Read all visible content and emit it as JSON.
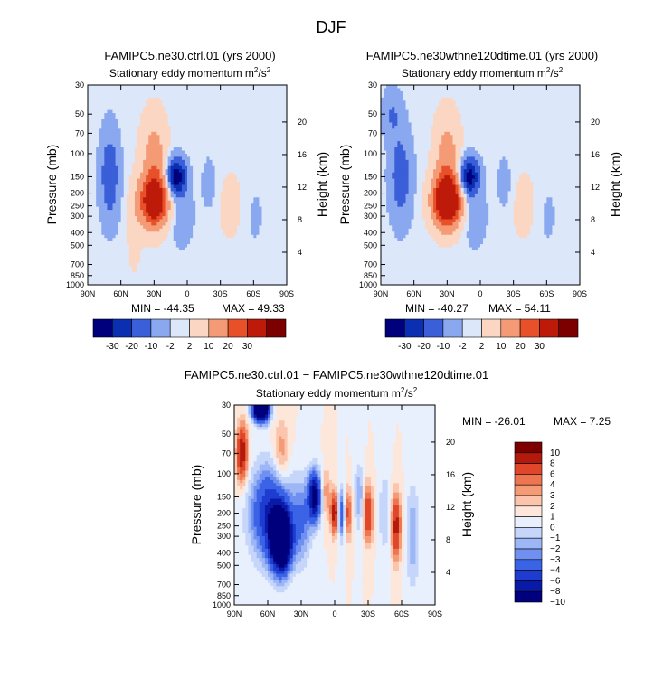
{
  "figure_title": "DJF",
  "chart_data": [
    {
      "type": "heatmap",
      "id": "p1",
      "case_title": "FAMIPC5.ne30.ctrl.01 (yrs 2000)",
      "subtitle": "Stationary eddy momentum",
      "units_base": "m",
      "units_exp1": "2",
      "units_mid": "/s",
      "units_exp2": "2",
      "ylabel": "Pressure (mb)",
      "ylabel_right": "Height (km)",
      "x_ticks": [
        "90N",
        "60N",
        "30N",
        "0",
        "30S",
        "60S",
        "90S"
      ],
      "x_lat": [
        90,
        60,
        30,
        0,
        -30,
        -60,
        -90
      ],
      "y_ticks": [
        "30",
        "50",
        "70",
        "100",
        "150",
        "200",
        "250",
        "300",
        "400",
        "500",
        "700",
        "850",
        "1000"
      ],
      "y_pressure": [
        30,
        50,
        70,
        100,
        150,
        200,
        250,
        300,
        400,
        500,
        700,
        850,
        1000
      ],
      "height_ticks": [
        "20",
        "16",
        "12",
        "8",
        "4"
      ],
      "height_km": [
        20,
        16,
        12,
        8,
        4
      ],
      "min_label": "MIN = -44.35",
      "max_label": "MAX =  49.33",
      "levels": [
        -30,
        -20,
        -10,
        -2,
        2,
        10,
        20,
        30
      ],
      "colorbar_labels": [
        "-30",
        "-20",
        "-10",
        "-2",
        "2",
        "10",
        "20",
        "30"
      ],
      "features": [
        {
          "lat": 70,
          "p": 150,
          "value": -18,
          "sigma_lat": 6,
          "sigma_logp": 0.55
        },
        {
          "lat": 30,
          "p": 230,
          "value": 45,
          "sigma_lat": 9,
          "sigma_logp": 0.32
        },
        {
          "lat": 30,
          "p": 100,
          "value": 14,
          "sigma_lat": 8,
          "sigma_logp": 0.5
        },
        {
          "lat": 10,
          "p": 150,
          "value": -38,
          "sigma_lat": 6,
          "sigma_logp": 0.22
        },
        {
          "lat": 5,
          "p": 300,
          "value": -6,
          "sigma_lat": 8,
          "sigma_logp": 0.4
        },
        {
          "lat": -20,
          "p": 170,
          "value": -5,
          "sigma_lat": 5,
          "sigma_logp": 0.35
        },
        {
          "lat": -40,
          "p": 250,
          "value": 4,
          "sigma_lat": 10,
          "sigma_logp": 0.5
        },
        {
          "lat": -60,
          "p": 300,
          "value": -3,
          "sigma_lat": 8,
          "sigma_logp": 0.5
        },
        {
          "lat": 48,
          "p": 400,
          "value": 4,
          "sigma_lat": 5,
          "sigma_logp": 0.6
        }
      ]
    },
    {
      "type": "heatmap",
      "id": "p2",
      "case_title": "FAMIPC5.ne30wthne120dtime.01 (yrs 2000)",
      "subtitle": "Stationary eddy momentum",
      "units_base": "m",
      "units_exp1": "2",
      "units_mid": "/s",
      "units_exp2": "2",
      "ylabel": "Pressure (mb)",
      "ylabel_right": "Height (km)",
      "x_ticks": [
        "90N",
        "60N",
        "30N",
        "0",
        "30S",
        "60S",
        "90S"
      ],
      "x_lat": [
        90,
        60,
        30,
        0,
        -30,
        -60,
        -90
      ],
      "y_ticks": [
        "30",
        "50",
        "70",
        "100",
        "150",
        "200",
        "250",
        "300",
        "400",
        "500",
        "700",
        "850",
        "1000"
      ],
      "y_pressure": [
        30,
        50,
        70,
        100,
        150,
        200,
        250,
        300,
        400,
        500,
        700,
        850,
        1000
      ],
      "height_ticks": [
        "20",
        "16",
        "12",
        "8",
        "4"
      ],
      "height_km": [
        20,
        16,
        12,
        8,
        4
      ],
      "min_label": "MIN = -40.27",
      "max_label": "MAX =  54.11",
      "levels": [
        -30,
        -20,
        -10,
        -2,
        2,
        10,
        20,
        30
      ],
      "colorbar_labels": [
        "-30",
        "-20",
        "-10",
        "-2",
        "2",
        "10",
        "20",
        "30"
      ],
      "features": [
        {
          "lat": 72,
          "p": 150,
          "value": -16,
          "sigma_lat": 7,
          "sigma_logp": 0.55
        },
        {
          "lat": 80,
          "p": 50,
          "value": -10,
          "sigma_lat": 6,
          "sigma_logp": 0.3
        },
        {
          "lat": 30,
          "p": 230,
          "value": 52,
          "sigma_lat": 9,
          "sigma_logp": 0.32
        },
        {
          "lat": 30,
          "p": 100,
          "value": 14,
          "sigma_lat": 8,
          "sigma_logp": 0.5
        },
        {
          "lat": 10,
          "p": 150,
          "value": -36,
          "sigma_lat": 6,
          "sigma_logp": 0.22
        },
        {
          "lat": 5,
          "p": 300,
          "value": -6,
          "sigma_lat": 8,
          "sigma_logp": 0.4
        },
        {
          "lat": -22,
          "p": 170,
          "value": -5,
          "sigma_lat": 5,
          "sigma_logp": 0.35
        },
        {
          "lat": -40,
          "p": 250,
          "value": 4,
          "sigma_lat": 10,
          "sigma_logp": 0.5
        },
        {
          "lat": -60,
          "p": 300,
          "value": -3,
          "sigma_lat": 8,
          "sigma_logp": 0.5
        }
      ]
    },
    {
      "type": "heatmap",
      "id": "p3",
      "case_title": "FAMIPC5.ne30.ctrl.01 − FAMIPC5.ne30wthne120dtime.01",
      "subtitle": "Stationary eddy momentum",
      "units_base": "m",
      "units_exp1": "2",
      "units_mid": "/s",
      "units_exp2": "2",
      "ylabel": "Pressure (mb)",
      "ylabel_right": "Height (km)",
      "x_ticks": [
        "90N",
        "60N",
        "30N",
        "0",
        "30S",
        "60S",
        "90S"
      ],
      "x_lat": [
        90,
        60,
        30,
        0,
        -30,
        -60,
        -90
      ],
      "y_ticks": [
        "30",
        "50",
        "70",
        "100",
        "150",
        "200",
        "250",
        "300",
        "400",
        "500",
        "700",
        "850",
        "1000"
      ],
      "y_pressure": [
        30,
        50,
        70,
        100,
        150,
        200,
        250,
        300,
        400,
        500,
        700,
        850,
        1000
      ],
      "height_ticks": [
        "20",
        "16",
        "12",
        "8",
        "4"
      ],
      "height_km": [
        20,
        16,
        12,
        8,
        4
      ],
      "min_label": "MIN = -26.01",
      "max_label": "MAX =   7.25",
      "levels": [
        -10,
        -8,
        -6,
        -4,
        -3,
        -2,
        -1,
        0,
        1,
        2,
        3,
        4,
        6,
        8,
        10
      ],
      "colorbar_labels": [
        "10",
        "8",
        "6",
        "4",
        "3",
        "2",
        "1",
        "0",
        "−1",
        "−2",
        "−3",
        "−4",
        "−6",
        "−8",
        "−10"
      ],
      "features": [
        {
          "lat": 83,
          "p": 70,
          "value": 8,
          "sigma_lat": 3.5,
          "sigma_logp": 0.35
        },
        {
          "lat": 66,
          "p": 32,
          "value": -20,
          "sigma_lat": 5,
          "sigma_logp": 0.15
        },
        {
          "lat": 58,
          "p": 200,
          "value": -8,
          "sigma_lat": 12,
          "sigma_logp": 0.55
        },
        {
          "lat": 48,
          "p": 320,
          "value": -22,
          "sigma_lat": 6,
          "sigma_logp": 0.35
        },
        {
          "lat": 48,
          "p": 70,
          "value": 3,
          "sigma_lat": 5,
          "sigma_logp": 0.4
        },
        {
          "lat": 30,
          "p": 230,
          "value": -4,
          "sigma_lat": 6,
          "sigma_logp": 0.5
        },
        {
          "lat": 18,
          "p": 150,
          "value": -12,
          "sigma_lat": 4,
          "sigma_logp": 0.3
        },
        {
          "lat": 8,
          "p": 140,
          "value": 3,
          "sigma_lat": 3,
          "sigma_logp": 0.3
        },
        {
          "lat": 0,
          "p": 200,
          "value": 8,
          "sigma_lat": 2.5,
          "sigma_logp": 0.25
        },
        {
          "lat": -6,
          "p": 200,
          "value": -6,
          "sigma_lat": 2.5,
          "sigma_logp": 0.3
        },
        {
          "lat": -12,
          "p": 200,
          "value": 5,
          "sigma_lat": 2.5,
          "sigma_logp": 0.3
        },
        {
          "lat": -22,
          "p": 150,
          "value": -3,
          "sigma_lat": 3,
          "sigma_logp": 0.4
        },
        {
          "lat": -30,
          "p": 200,
          "value": 6,
          "sigma_lat": 3,
          "sigma_logp": 0.35
        },
        {
          "lat": -45,
          "p": 200,
          "value": -2,
          "sigma_lat": 4,
          "sigma_logp": 0.5
        },
        {
          "lat": -55,
          "p": 250,
          "value": 7,
          "sigma_lat": 3,
          "sigma_logp": 0.4
        },
        {
          "lat": -70,
          "p": 300,
          "value": -3,
          "sigma_lat": 4,
          "sigma_logp": 0.6
        }
      ]
    }
  ],
  "colors": {
    "palette_8": [
      "#00007d",
      "#0a2fb0",
      "#3a5fd8",
      "#8aa8ef",
      "#dce8fa",
      "#fbd6c2",
      "#f49b76",
      "#e8502a",
      "#bd1a0a",
      "#7d0000"
    ],
    "palette_15": [
      "#00007d",
      "#0a1aa8",
      "#1f3cd0",
      "#3a63e6",
      "#6f90f0",
      "#9db6f6",
      "#c6d6fb",
      "#e8f0fe",
      "#fde6da",
      "#fbc5ad",
      "#f49b76",
      "#ee7550",
      "#e0472a",
      "#b31a0c",
      "#7d0000"
    ]
  }
}
